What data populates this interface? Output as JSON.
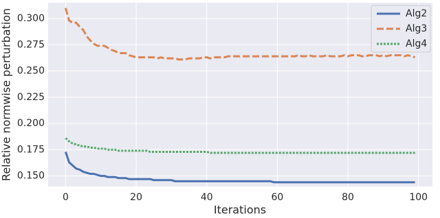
{
  "chart_data": {
    "type": "line",
    "xlabel": "Iterations",
    "ylabel": "Relative normwise perturbation",
    "x": [
      0,
      1,
      2,
      3,
      4,
      5,
      6,
      7,
      8,
      9,
      10,
      11,
      12,
      13,
      14,
      15,
      16,
      17,
      18,
      19,
      20,
      21,
      22,
      23,
      24,
      25,
      26,
      27,
      28,
      29,
      30,
      31,
      32,
      33,
      34,
      35,
      36,
      37,
      38,
      39,
      40,
      41,
      42,
      43,
      44,
      45,
      46,
      47,
      48,
      49,
      50,
      51,
      52,
      53,
      54,
      55,
      56,
      57,
      58,
      59,
      60,
      61,
      62,
      63,
      64,
      65,
      66,
      67,
      68,
      69,
      70,
      71,
      72,
      73,
      74,
      75,
      76,
      77,
      78,
      79,
      80,
      81,
      82,
      83,
      84,
      85,
      86,
      87,
      88,
      89,
      90,
      91,
      92,
      93,
      94,
      95,
      96,
      97,
      98,
      99
    ],
    "series": [
      {
        "name": "Alg2",
        "color": "#4c72b0",
        "linestyle": "solid",
        "values": [
          0.173,
          0.163,
          0.16,
          0.157,
          0.156,
          0.154,
          0.153,
          0.152,
          0.152,
          0.151,
          0.15,
          0.15,
          0.149,
          0.149,
          0.149,
          0.148,
          0.148,
          0.148,
          0.147,
          0.147,
          0.147,
          0.147,
          0.147,
          0.147,
          0.147,
          0.146,
          0.146,
          0.146,
          0.146,
          0.146,
          0.146,
          0.145,
          0.145,
          0.145,
          0.145,
          0.145,
          0.145,
          0.145,
          0.145,
          0.145,
          0.145,
          0.145,
          0.145,
          0.145,
          0.145,
          0.145,
          0.145,
          0.145,
          0.145,
          0.145,
          0.145,
          0.145,
          0.145,
          0.145,
          0.145,
          0.145,
          0.145,
          0.145,
          0.145,
          0.144,
          0.144,
          0.144,
          0.144,
          0.144,
          0.144,
          0.144,
          0.144,
          0.144,
          0.144,
          0.144,
          0.144,
          0.144,
          0.144,
          0.144,
          0.144,
          0.144,
          0.144,
          0.144,
          0.144,
          0.144,
          0.144,
          0.144,
          0.144,
          0.144,
          0.144,
          0.144,
          0.144,
          0.144,
          0.144,
          0.144,
          0.144,
          0.144,
          0.144,
          0.144,
          0.144,
          0.144,
          0.144,
          0.144,
          0.144,
          0.144
        ]
      },
      {
        "name": "Alg3",
        "color": "#dd8452",
        "linestyle": "dashed",
        "values": [
          0.31,
          0.298,
          0.296,
          0.296,
          0.292,
          0.289,
          0.283,
          0.279,
          0.276,
          0.274,
          0.274,
          0.274,
          0.272,
          0.27,
          0.269,
          0.267,
          0.267,
          0.267,
          0.265,
          0.264,
          0.263,
          0.263,
          0.263,
          0.263,
          0.263,
          0.263,
          0.262,
          0.263,
          0.262,
          0.262,
          0.262,
          0.262,
          0.261,
          0.261,
          0.261,
          0.262,
          0.262,
          0.262,
          0.262,
          0.263,
          0.263,
          0.262,
          0.263,
          0.263,
          0.263,
          0.263,
          0.264,
          0.264,
          0.264,
          0.264,
          0.264,
          0.264,
          0.264,
          0.264,
          0.264,
          0.264,
          0.264,
          0.264,
          0.264,
          0.264,
          0.264,
          0.264,
          0.264,
          0.264,
          0.264,
          0.264,
          0.265,
          0.264,
          0.264,
          0.265,
          0.264,
          0.264,
          0.264,
          0.264,
          0.265,
          0.264,
          0.264,
          0.264,
          0.264,
          0.265,
          0.264,
          0.265,
          0.265,
          0.265,
          0.264,
          0.264,
          0.265,
          0.265,
          0.265,
          0.264,
          0.265,
          0.264,
          0.265,
          0.265,
          0.265,
          0.265,
          0.264,
          0.265,
          0.264,
          0.263
        ]
      },
      {
        "name": "Alg4",
        "color": "#55a868",
        "linestyle": "dotted",
        "values": [
          0.186,
          0.183,
          0.181,
          0.18,
          0.179,
          0.178,
          0.178,
          0.177,
          0.177,
          0.176,
          0.176,
          0.176,
          0.175,
          0.175,
          0.175,
          0.174,
          0.174,
          0.174,
          0.174,
          0.174,
          0.174,
          0.174,
          0.174,
          0.174,
          0.173,
          0.173,
          0.173,
          0.173,
          0.173,
          0.173,
          0.173,
          0.173,
          0.173,
          0.173,
          0.173,
          0.173,
          0.173,
          0.173,
          0.173,
          0.173,
          0.173,
          0.172,
          0.172,
          0.172,
          0.172,
          0.172,
          0.172,
          0.172,
          0.172,
          0.172,
          0.172,
          0.172,
          0.172,
          0.172,
          0.172,
          0.172,
          0.172,
          0.172,
          0.172,
          0.172,
          0.172,
          0.172,
          0.172,
          0.172,
          0.172,
          0.172,
          0.172,
          0.172,
          0.172,
          0.172,
          0.172,
          0.172,
          0.172,
          0.172,
          0.172,
          0.172,
          0.172,
          0.172,
          0.172,
          0.172,
          0.172,
          0.172,
          0.172,
          0.172,
          0.172,
          0.172,
          0.172,
          0.172,
          0.172,
          0.172,
          0.172,
          0.172,
          0.172,
          0.172,
          0.172,
          0.172,
          0.172,
          0.172,
          0.172,
          0.172
        ]
      }
    ],
    "xlim": [
      -4.95,
      103.95
    ],
    "xticks": [
      0,
      20,
      40,
      60,
      80,
      100
    ],
    "ylim": [
      0.14,
      0.315
    ],
    "yticks": [
      {
        "value": 0.15,
        "label": "0.150"
      },
      {
        "value": 0.175,
        "label": "0.175"
      },
      {
        "value": 0.2,
        "label": "0.200"
      },
      {
        "value": 0.225,
        "label": "0.225"
      },
      {
        "value": 0.25,
        "label": "0.250"
      },
      {
        "value": 0.275,
        "label": "0.275"
      },
      {
        "value": 0.3,
        "label": "0.300"
      }
    ],
    "grid": true,
    "legend": "upper right"
  }
}
